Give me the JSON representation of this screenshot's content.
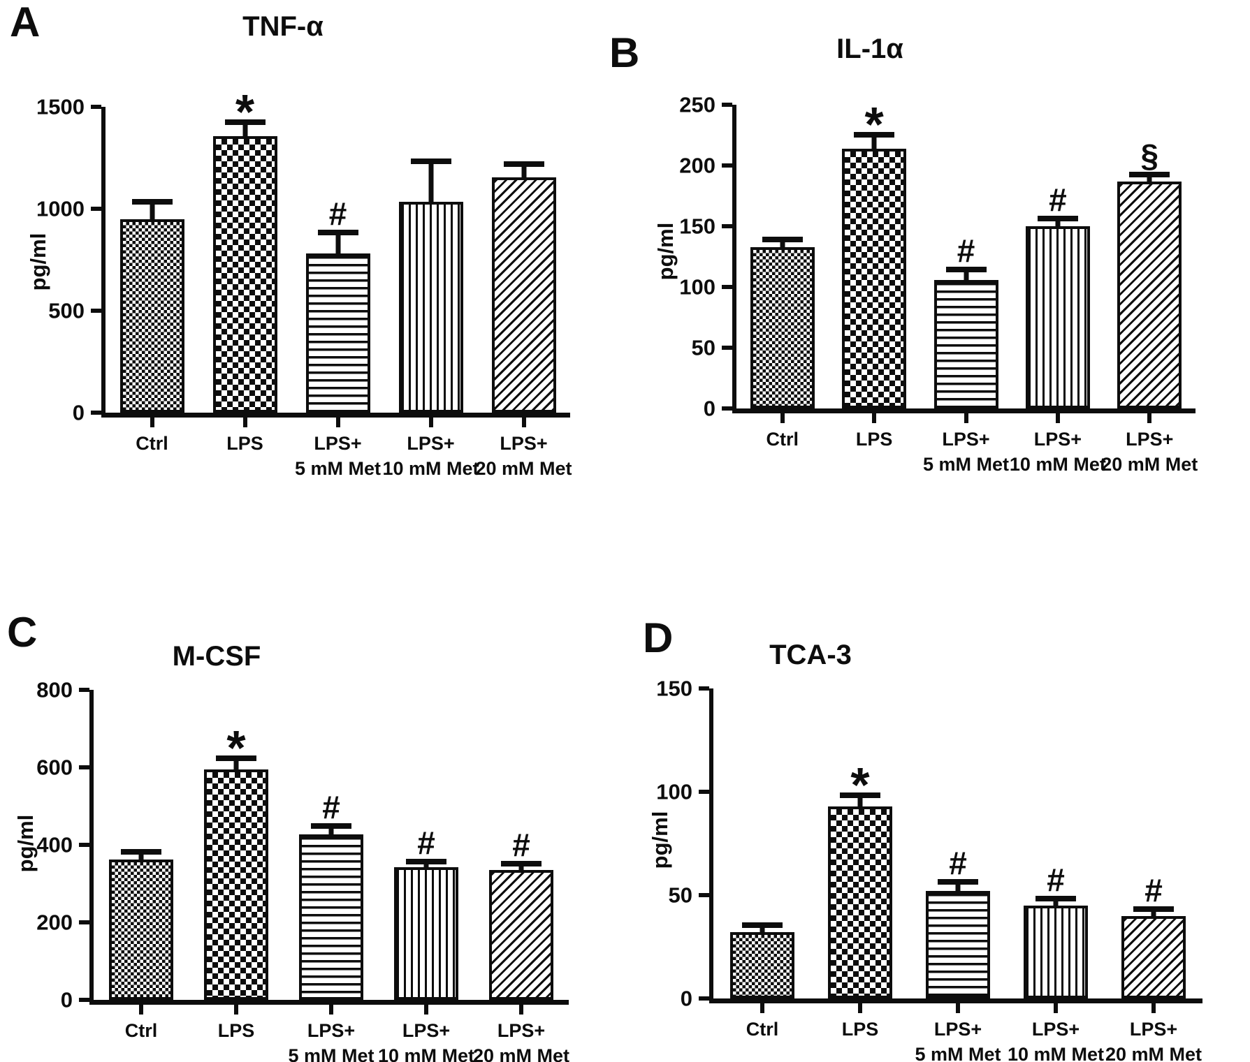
{
  "figure": {
    "background": "#ffffff",
    "ink_color": "#0d0d0d",
    "panel_letters": [
      "A",
      "B",
      "C",
      "D"
    ]
  },
  "chart_data": [
    {
      "type": "bar",
      "panel": "A",
      "title": "TNF-α",
      "ylabel": "pg/ml",
      "ylim": [
        0,
        1500
      ],
      "yticks": [
        0,
        500,
        1000,
        1500
      ],
      "grid": false,
      "legend": "none",
      "categories": [
        "Ctrl",
        "LPS",
        "LPS+\n5 mM Met",
        "LPS+\n10 mM Met",
        "LPS+\n20 mM Met"
      ],
      "values": [
        950,
        1355,
        780,
        1035,
        1155
      ],
      "errors": [
        70,
        55,
        90,
        185,
        50
      ],
      "significance": [
        "",
        "*",
        "#",
        "",
        ""
      ],
      "bar_patterns": [
        "fine-checker",
        "checker",
        "horizontal-lines",
        "vertical-lines",
        "diagonal-lines"
      ]
    },
    {
      "type": "bar",
      "panel": "B",
      "title": "IL-1α",
      "ylabel": "pg/ml",
      "ylim": [
        0,
        250
      ],
      "yticks": [
        0,
        50,
        100,
        150,
        200,
        250
      ],
      "grid": false,
      "legend": "none",
      "categories": [
        "Ctrl",
        "LPS",
        "LPS+\n5 mM Met",
        "LPS+\n10 mM Met",
        "LPS+\n20 mM Met"
      ],
      "values": [
        133,
        214,
        106,
        150,
        187
      ],
      "errors": [
        4,
        9,
        6,
        4,
        3
      ],
      "significance": [
        "",
        "*",
        "#",
        "#",
        "§"
      ],
      "bar_patterns": [
        "fine-checker",
        "checker",
        "horizontal-lines",
        "vertical-lines",
        "diagonal-lines"
      ]
    },
    {
      "type": "bar",
      "panel": "C",
      "title": "M-CSF",
      "ylabel": "pg/ml",
      "ylim": [
        0,
        800
      ],
      "yticks": [
        0,
        200,
        400,
        600,
        800
      ],
      "grid": false,
      "legend": "none",
      "categories": [
        "Ctrl",
        "LPS",
        "LPS+\n5 mM Met",
        "LPS+\n10 mM Met",
        "LPS+\n20 mM Met"
      ],
      "values": [
        362,
        595,
        427,
        343,
        336
      ],
      "errors": [
        12,
        22,
        15,
        6,
        9
      ],
      "significance": [
        "",
        "*",
        "#",
        "#",
        "#"
      ],
      "bar_patterns": [
        "fine-checker",
        "checker",
        "horizontal-lines",
        "vertical-lines",
        "diagonal-lines"
      ]
    },
    {
      "type": "bar",
      "panel": "D",
      "title": "TCA-3",
      "ylabel": "pg/ml",
      "ylim": [
        0,
        150
      ],
      "yticks": [
        0,
        50,
        100,
        150
      ],
      "grid": false,
      "legend": "none",
      "categories": [
        "Ctrl",
        "LPS",
        "LPS+\n5 mM Met",
        "LPS+\n10 mM Met",
        "LPS+\n20 mM Met"
      ],
      "values": [
        32,
        93,
        52,
        45,
        40
      ],
      "errors": [
        2,
        4,
        3,
        2,
        2
      ],
      "significance": [
        "",
        "*",
        "#",
        "#",
        "#"
      ],
      "bar_patterns": [
        "fine-checker",
        "checker",
        "horizontal-lines",
        "vertical-lines",
        "diagonal-lines"
      ]
    }
  ]
}
